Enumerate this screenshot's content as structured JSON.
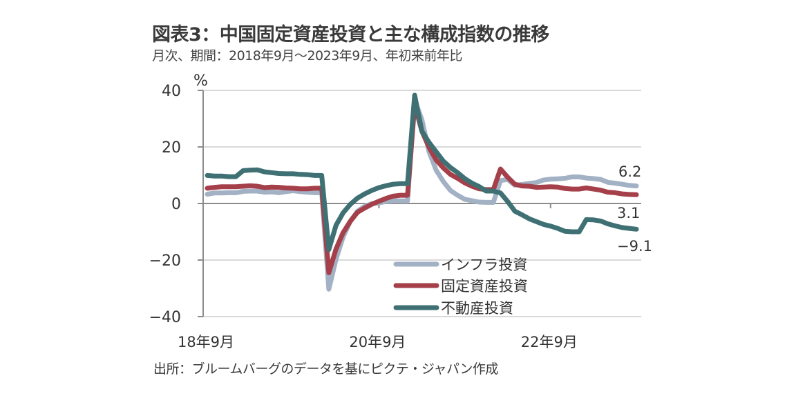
{
  "title": "図表3：中国固定資産投資と主な構成指数の推移",
  "subtitle": "月次、期間：2018年9月～2023年9月、年初来前年比",
  "source": "出所：ブルームバーグのデータを基にピクテ・ジャパン作成",
  "colors": {
    "infra": "#a3b1c4",
    "fai": "#a5404a",
    "realestate": "#3f7174",
    "grid": "#d9d9d9",
    "axis": "#8c8c8c"
  },
  "chart_data": {
    "type": "line",
    "title": "図表3：中国固定資産投資と主な構成指数の推移",
    "ylabel": "%",
    "xlabel": "",
    "ylim": [
      -40,
      40
    ],
    "yticks": [
      40,
      20,
      0,
      -20,
      -40
    ],
    "ytick_labels": [
      "40",
      "20",
      "0",
      "−20",
      "−40"
    ],
    "x_start": "2018-09",
    "x_end": "2023-09",
    "xtick_labels": [
      "18年9月",
      "20年9月",
      "22年9月"
    ],
    "xtick_index": [
      0,
      24,
      48
    ],
    "grid": true,
    "legend_position": "bottom-center",
    "series": [
      {
        "key": "infra",
        "name": "インフラ投資",
        "end_label": "6.2",
        "values": [
          3.3,
          3.7,
          3.7,
          3.8,
          3.8,
          4.3,
          4.4,
          4.4,
          4.0,
          4.1,
          3.8,
          4.2,
          4.5,
          4.2,
          4.0,
          3.8,
          3.8,
          -30.3,
          -19.7,
          -11.8,
          -6.3,
          -2.7,
          -1.0,
          -0.1,
          0.2,
          0.7,
          1.0,
          0.9,
          0.9,
          36.6,
          29.7,
          18.4,
          11.8,
          7.8,
          4.6,
          2.9,
          1.5,
          1.0,
          0.5,
          0.4,
          0.4,
          8.1,
          8.5,
          6.5,
          6.7,
          7.1,
          7.4,
          8.3,
          8.6,
          8.7,
          8.9,
          9.4,
          9.4,
          9.0,
          8.8,
          8.5,
          7.5,
          7.2,
          6.8,
          6.4,
          6.2
        ]
      },
      {
        "key": "fai",
        "name": "固定資産投資",
        "end_label": "3.1",
        "values": [
          5.4,
          5.7,
          5.9,
          5.9,
          5.9,
          6.1,
          6.3,
          6.1,
          5.6,
          5.8,
          5.7,
          5.5,
          5.4,
          5.2,
          5.2,
          5.4,
          5.4,
          -24.5,
          -16.1,
          -10.3,
          -6.3,
          -3.1,
          -1.6,
          -0.3,
          0.8,
          1.8,
          2.6,
          2.9,
          2.9,
          35.0,
          25.6,
          19.9,
          15.4,
          12.6,
          10.3,
          8.9,
          7.3,
          6.1,
          5.2,
          4.9,
          4.9,
          12.2,
          9.3,
          6.8,
          6.2,
          6.1,
          5.7,
          5.8,
          5.9,
          5.8,
          5.3,
          5.1,
          5.1,
          5.5,
          5.1,
          4.7,
          4.0,
          3.8,
          3.4,
          3.2,
          3.1
        ]
      },
      {
        "key": "realestate",
        "name": "不動産投資",
        "end_label": "−9.1",
        "values": [
          9.9,
          9.7,
          9.7,
          9.5,
          9.5,
          11.6,
          11.8,
          11.9,
          11.2,
          10.9,
          10.6,
          10.5,
          10.5,
          10.3,
          10.2,
          9.9,
          9.9,
          -16.3,
          -7.7,
          -3.3,
          -0.3,
          1.9,
          3.4,
          4.6,
          5.6,
          6.3,
          6.8,
          7.0,
          7.0,
          38.3,
          25.6,
          21.6,
          18.3,
          15.0,
          12.7,
          10.9,
          8.8,
          7.2,
          6.0,
          4.4,
          4.4,
          3.7,
          0.7,
          -2.7,
          -4.0,
          -5.4,
          -6.4,
          -7.4,
          -8.0,
          -8.8,
          -9.8,
          -10.0,
          -10.0,
          -5.7,
          -5.8,
          -6.2,
          -7.2,
          -7.9,
          -8.5,
          -8.8,
          -9.1
        ]
      }
    ]
  }
}
